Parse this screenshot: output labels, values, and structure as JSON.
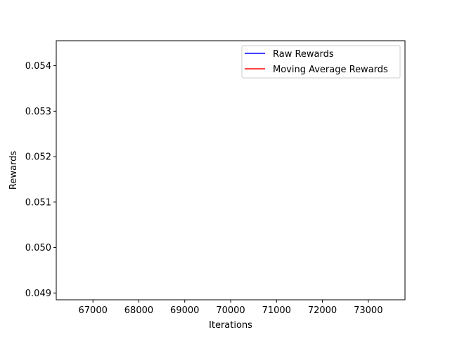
{
  "chart_data": {
    "type": "line",
    "title": "",
    "xlabel": "Iterations",
    "ylabel": "Rewards",
    "xlim": [
      66200,
      73800
    ],
    "ylim": [
      0.04885,
      0.05455
    ],
    "xticks": [
      67000,
      68000,
      69000,
      70000,
      71000,
      72000,
      73000
    ],
    "xtick_labels": [
      "67000",
      "68000",
      "69000",
      "70000",
      "71000",
      "72000",
      "73000"
    ],
    "yticks": [
      0.049,
      0.05,
      0.051,
      0.052,
      0.053,
      0.054
    ],
    "ytick_labels": [
      "0.049",
      "0.050",
      "0.051",
      "0.052",
      "0.053",
      "0.054"
    ],
    "grid": false,
    "legend_position": "top-right",
    "series": [
      {
        "name": "Raw Rewards",
        "color": "#0000ff",
        "x": [],
        "y": []
      },
      {
        "name": "Moving Average Rewards",
        "color": "#ff0000",
        "x": [],
        "y": []
      }
    ]
  }
}
